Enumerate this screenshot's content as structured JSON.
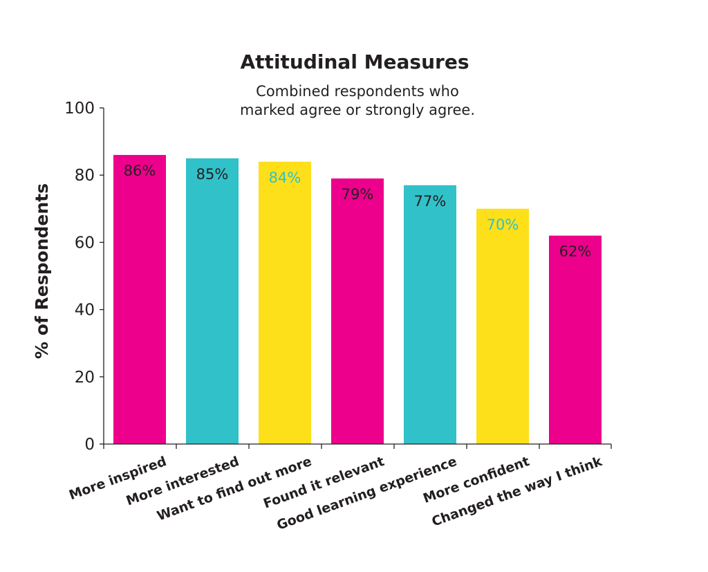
{
  "chart_data": {
    "type": "bar",
    "title": "Attitudinal Measures",
    "subtitle": [
      "Combined respondents who",
      "marked agree or strongly agree."
    ],
    "ylabel": "% of Respondents",
    "xlabel": "",
    "ylim": [
      0,
      100
    ],
    "yticks": [
      0,
      20,
      40,
      60,
      80,
      100
    ],
    "categories": [
      "More inspired",
      "More interested",
      "Want to find out more",
      "Found it relevant",
      "Good learning experience",
      "More confident",
      "Changed the way I think"
    ],
    "values": [
      86,
      85,
      84,
      79,
      77,
      70,
      62
    ],
    "data_labels": [
      "86%",
      "85%",
      "84%",
      "79%",
      "77%",
      "70%",
      "62%"
    ],
    "bar_colors": [
      "#ec008c",
      "#31c1c9",
      "#fde01a",
      "#ec008c",
      "#31c1c9",
      "#fde01a",
      "#ec008c"
    ],
    "label_colors": [
      "#231f20",
      "#231f20",
      "#31c1c9",
      "#231f20",
      "#231f20",
      "#31c1c9",
      "#231f20"
    ],
    "grid": false,
    "legend": "none"
  }
}
